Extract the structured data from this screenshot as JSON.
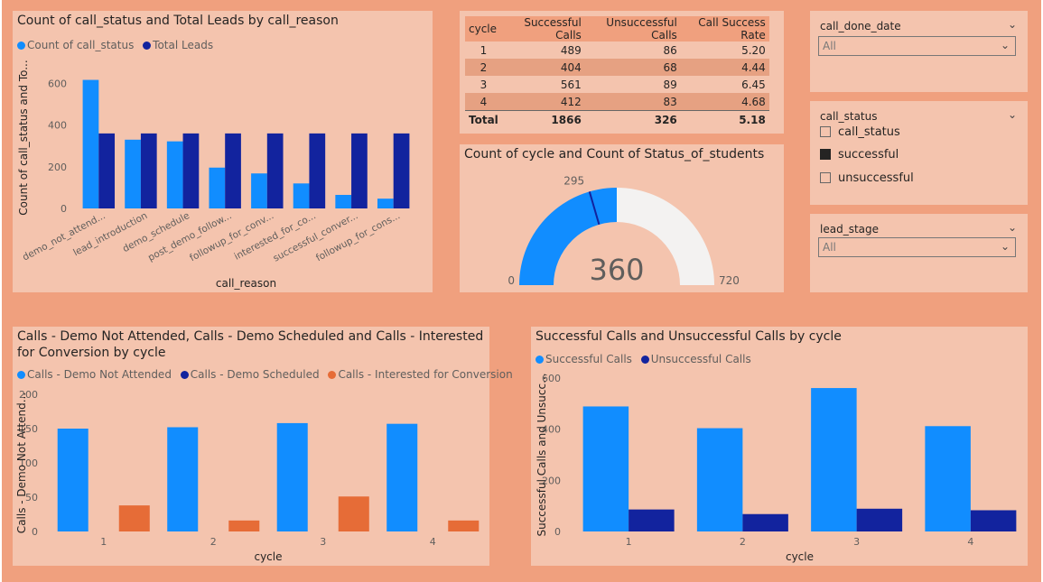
{
  "colors": {
    "light_blue": "#118DFF",
    "dark_blue": "#12239E",
    "orange": "#E66C37",
    "gauge_empty": "#F3F2F1",
    "tile_bg": "#f4c4ae",
    "page_bg": "#f0a07e"
  },
  "chart1": {
    "title": "Count of call_status and Total Leads by call_reason",
    "legend": [
      "Count of call_status",
      "Total Leads"
    ],
    "ylabel": "Count of call_status and To...",
    "xlabel": "call_reason",
    "yticks": [
      "0",
      "200",
      "400",
      "600"
    ]
  },
  "chart2": {
    "title": "Count of cycle and Count of Status_of_students",
    "min_label": "0",
    "max_label": "720",
    "value_label": "360",
    "target_label": "295"
  },
  "chart3": {
    "title_line1": "Calls - Demo Not Attended, Calls - Demo Scheduled and Calls - Interested",
    "title_line2": "for Conversion by cycle",
    "legend": [
      "Calls - Demo Not Attended",
      "Calls - Demo Scheduled",
      "Calls - Interested for Conversion"
    ],
    "ylabel": "Calls - Demo Not Attend...",
    "xlabel": "cycle",
    "yticks": [
      "0",
      "50",
      "100",
      "150",
      "200"
    ]
  },
  "chart4": {
    "title": "Successful Calls and Unsuccessful Calls by cycle",
    "legend": [
      "Successful Calls",
      "Unsuccessful Calls"
    ],
    "ylabel": "Successful Calls and Unsucc...",
    "xlabel": "cycle",
    "yticks": [
      "0",
      "200",
      "400",
      "600"
    ]
  },
  "chart_data": [
    {
      "type": "bar",
      "title": "Count of call_status and Total Leads by call_reason",
      "categories": [
        "demo_not_attend...",
        "lead_introduction",
        "demo_schedule",
        "post_demo_follow...",
        "followup_for_conv...",
        "interested_for_co...",
        "successful_conver...",
        "followup_for_cons..."
      ],
      "series": [
        {
          "name": "Count of call_status",
          "values": [
            617,
            330,
            322,
            196,
            168,
            120,
            65,
            47
          ]
        },
        {
          "name": "Total Leads",
          "values": [
            360,
            360,
            360,
            360,
            360,
            360,
            360,
            360
          ]
        }
      ],
      "xlabel": "call_reason",
      "ylabel": "Count of call_status and To...",
      "ylim": [
        0,
        680
      ]
    },
    {
      "type": "table",
      "title": "",
      "columns": [
        "cycle",
        "Successful Calls",
        "Unsuccessful Calls",
        "Call Success Rate"
      ],
      "rows": [
        [
          "1",
          "489",
          "86",
          "5.20"
        ],
        [
          "2",
          "404",
          "68",
          "4.44"
        ],
        [
          "3",
          "561",
          "89",
          "6.45"
        ],
        [
          "4",
          "412",
          "83",
          "4.68"
        ]
      ],
      "total": [
        "Total",
        "1866",
        "326",
        "5.18"
      ]
    },
    {
      "type": "gauge",
      "title": "Count of cycle and Count of Status_of_students",
      "value": 360,
      "min": 0,
      "max": 720,
      "target": 295
    },
    {
      "type": "bar",
      "title": "Calls - Demo Not Attended, Calls - Demo Scheduled and Calls - Interested for Conversion by cycle",
      "categories": [
        "1",
        "2",
        "3",
        "4"
      ],
      "series": [
        {
          "name": "Calls - Demo Not Attended",
          "values": [
            150,
            152,
            158,
            157
          ]
        },
        {
          "name": "Calls - Demo Scheduled",
          "values": [
            0,
            0,
            0,
            0
          ]
        },
        {
          "name": "Calls - Interested for Conversion",
          "values": [
            38,
            16,
            51,
            16
          ]
        }
      ],
      "xlabel": "cycle",
      "ylabel": "Calls - Demo Not Attend...",
      "ylim": [
        0,
        200
      ]
    },
    {
      "type": "bar",
      "title": "Successful Calls and Unsuccessful Calls by cycle",
      "categories": [
        "1",
        "2",
        "3",
        "4"
      ],
      "series": [
        {
          "name": "Successful Calls",
          "values": [
            489,
            404,
            561,
            412
          ]
        },
        {
          "name": "Unsuccessful Calls",
          "values": [
            86,
            68,
            89,
            83
          ]
        }
      ],
      "xlabel": "cycle",
      "ylabel": "Successful Calls and Unsucc...",
      "ylim": [
        0,
        600
      ]
    }
  ],
  "table": {
    "headers": [
      "cycle",
      "Successful Calls",
      "Unsuccessful Calls",
      "Call Success Rate"
    ],
    "rows": [
      [
        "1",
        "489",
        "86",
        "5.20"
      ],
      [
        "2",
        "404",
        "68",
        "4.44"
      ],
      [
        "3",
        "561",
        "89",
        "6.45"
      ],
      [
        "4",
        "412",
        "83",
        "4.68"
      ]
    ],
    "total": [
      "Total",
      "1866",
      "326",
      "5.18"
    ]
  },
  "slicers": {
    "call_done_date": {
      "title": "call_done_date",
      "value": "All"
    },
    "call_status": {
      "title": "call_status",
      "options": [
        "call_status",
        "successful",
        "unsuccessful"
      ],
      "checked": [
        false,
        true,
        false
      ]
    },
    "lead_stage": {
      "title": "lead_stage",
      "value": "All"
    }
  },
  "icons": {
    "chevron": "chevron-down-icon"
  }
}
